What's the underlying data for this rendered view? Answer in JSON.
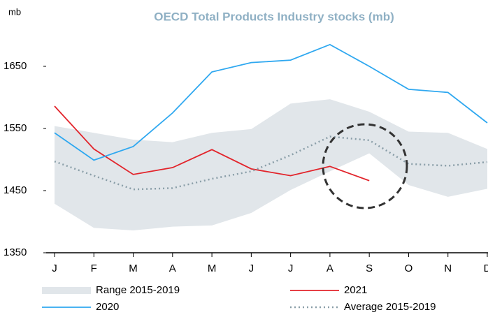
{
  "chart_data": {
    "type": "line",
    "title": "OECD  Total Products Industry  stocks (mb)",
    "y_label": "mb",
    "categories": [
      "J",
      "F",
      "M",
      "A",
      "M",
      "J",
      "J",
      "A",
      "S",
      "O",
      "N",
      "D"
    ],
    "ylim": [
      1350,
      1700
    ],
    "yticks": [
      1350,
      1450,
      1550,
      1650
    ],
    "series": [
      {
        "name": "Range 2015-2019",
        "color": "#e1e6ea",
        "high": [
          1554,
          1543,
          1532,
          1528,
          1543,
          1549,
          1590,
          1597,
          1577,
          1545,
          1543,
          1517
        ],
        "low": [
          1429,
          1390,
          1386,
          1392,
          1394,
          1414,
          1451,
          1481,
          1510,
          1459,
          1440,
          1453
        ]
      },
      {
        "name": "2021",
        "color": "#e2242b",
        "values": [
          1586,
          1517,
          1476,
          1487,
          1516,
          1485,
          1474,
          1489,
          1466,
          null,
          null,
          null
        ]
      },
      {
        "name": "2020",
        "color": "#2fa8f0",
        "values": [
          1543,
          1499,
          1521,
          1575,
          1641,
          1656,
          1660,
          1685,
          1650,
          1613,
          1608,
          1559
        ]
      },
      {
        "name": "Average 2015-2019",
        "color": "#8a9ea8",
        "dash": true,
        "values": [
          1497,
          1474,
          1452,
          1454,
          1469,
          1481,
          1507,
          1537,
          1531,
          1493,
          1490,
          1496
        ]
      }
    ]
  }
}
